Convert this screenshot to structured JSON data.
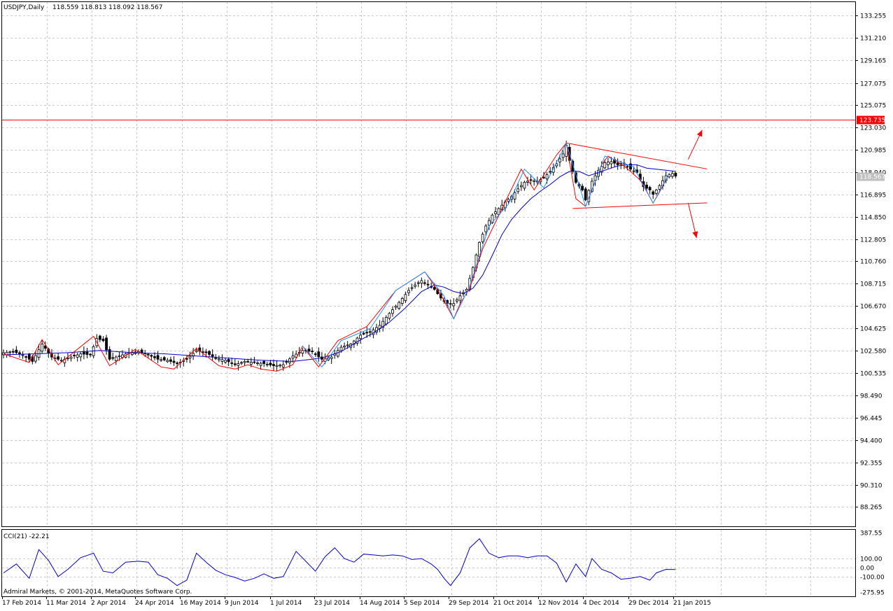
{
  "chart_data": [
    {
      "type": "candlestick",
      "symbol_header": "USDJPY,Daily",
      "ohlc_header": "118.559 118.813 118.092 118.567",
      "y_ticks": [
        "133.255",
        "131.210",
        "129.165",
        "127.075",
        "125.075",
        "123.030",
        "120.985",
        "118.940",
        "116.895",
        "114.850",
        "112.805",
        "110.760",
        "108.715",
        "106.670",
        "104.625",
        "102.580",
        "100.535",
        "98.490",
        "96.445",
        "94.400",
        "92.355",
        "90.310",
        "88.265"
      ],
      "y_tick_values": [
        133.255,
        131.21,
        129.165,
        127.075,
        125.075,
        123.03,
        120.985,
        118.94,
        116.895,
        114.85,
        112.805,
        110.76,
        108.715,
        106.67,
        104.625,
        102.58,
        100.535,
        98.49,
        96.445,
        94.4,
        92.355,
        90.31,
        88.265
      ],
      "ylim": [
        86.5,
        134.5
      ],
      "horizontal_line": {
        "value": 123.735,
        "label": "123.735",
        "color": "#ff0000"
      },
      "current_price": {
        "value": 118.567,
        "label": "118.567"
      },
      "x_ticks": [
        "17 Feb 2014",
        "11 Mar 2014",
        "2 Apr 2014",
        "24 Apr 2014",
        "16 May 2014",
        "9 Jun 2014",
        "1 Jul 2014",
        "23 Jul 2014",
        "14 Aug 2014",
        "5 Sep 2014",
        "29 Sep 2014",
        "21 Oct 2014",
        "12 Nov 2014",
        "4 Dec 2014",
        "29 Dec 2014",
        "21 Jan 2015"
      ],
      "close_path": [
        [
          0,
          102.4
        ],
        [
          3,
          102.5
        ],
        [
          6,
          102.2
        ],
        [
          9,
          101.6
        ],
        [
          12,
          103.2
        ],
        [
          15,
          102.0
        ],
        [
          18,
          101.7
        ],
        [
          21,
          102.0
        ],
        [
          24,
          102.3
        ],
        [
          27,
          102.2
        ],
        [
          29,
          103.7
        ],
        [
          31,
          103.5
        ],
        [
          33,
          101.8
        ],
        [
          36,
          102.1
        ],
        [
          39,
          102.4
        ],
        [
          42,
          102.5
        ],
        [
          45,
          102.2
        ],
        [
          48,
          101.8
        ],
        [
          51,
          101.7
        ],
        [
          54,
          101.4
        ],
        [
          57,
          101.8
        ],
        [
          60,
          102.6
        ],
        [
          63,
          102.4
        ],
        [
          66,
          101.9
        ],
        [
          69,
          101.7
        ],
        [
          72,
          101.3
        ],
        [
          75,
          101.6
        ],
        [
          78,
          101.5
        ],
        [
          81,
          101.4
        ],
        [
          84,
          101.2
        ],
        [
          87,
          101.3
        ],
        [
          90,
          102.1
        ],
        [
          93,
          102.6
        ],
        [
          96,
          102.5
        ],
        [
          99,
          101.8
        ],
        [
          102,
          102.0
        ],
        [
          105,
          102.9
        ],
        [
          108,
          103.2
        ],
        [
          111,
          104.0
        ],
        [
          114,
          104.3
        ],
        [
          117,
          104.9
        ],
        [
          120,
          106.0
        ],
        [
          123,
          107.0
        ],
        [
          126,
          108.1
        ],
        [
          128,
          108.6
        ],
        [
          130,
          109.0
        ],
        [
          132,
          108.6
        ],
        [
          134,
          108.2
        ],
        [
          136,
          107.4
        ],
        [
          138,
          106.9
        ],
        [
          140,
          106.9
        ],
        [
          142,
          107.6
        ],
        [
          144,
          108.2
        ],
        [
          146,
          110.2
        ],
        [
          148,
          112.5
        ],
        [
          150,
          114.0
        ],
        [
          152,
          115.0
        ],
        [
          154,
          115.6
        ],
        [
          156,
          116.2
        ],
        [
          158,
          116.7
        ],
        [
          160,
          117.4
        ],
        [
          162,
          118.0
        ],
        [
          164,
          118.2
        ],
        [
          166,
          118.1
        ],
        [
          168,
          118.4
        ],
        [
          170,
          119.0
        ],
        [
          172,
          119.7
        ],
        [
          174,
          120.6
        ],
        [
          175,
          121.4
        ],
        [
          176,
          120.0
        ],
        [
          178,
          118.0
        ],
        [
          180,
          117.3
        ],
        [
          181,
          116.4
        ],
        [
          183,
          118.1
        ],
        [
          185,
          119.1
        ],
        [
          187,
          119.8
        ],
        [
          189,
          119.9
        ],
        [
          191,
          119.6
        ],
        [
          193,
          119.7
        ],
        [
          195,
          119.2
        ],
        [
          197,
          118.9
        ],
        [
          199,
          117.6
        ],
        [
          201,
          117.3
        ],
        [
          202,
          116.9
        ],
        [
          204,
          117.7
        ],
        [
          206,
          118.6
        ],
        [
          208,
          118.8
        ],
        [
          209,
          118.567
        ]
      ],
      "overlays": [
        {
          "name": "moving average",
          "color": "#0000cc",
          "path": [
            [
              0,
              102.2
            ],
            [
              10,
              102.3
            ],
            [
              20,
              102.4
            ],
            [
              30,
              102.6
            ],
            [
              40,
              102.4
            ],
            [
              50,
              102.3
            ],
            [
              60,
              102.1
            ],
            [
              70,
              101.9
            ],
            [
              80,
              101.7
            ],
            [
              90,
              101.6
            ],
            [
              96,
              101.8
            ],
            [
              100,
              102.0
            ],
            [
              105,
              102.5
            ],
            [
              110,
              103.4
            ],
            [
              115,
              104.2
            ],
            [
              120,
              105.2
            ],
            [
              125,
              106.5
            ],
            [
              130,
              108.0
            ],
            [
              134,
              108.6
            ],
            [
              137,
              108.4
            ],
            [
              140,
              108.0
            ],
            [
              143,
              107.8
            ],
            [
              146,
              108.3
            ],
            [
              149,
              109.5
            ],
            [
              152,
              111.3
            ],
            [
              155,
              113.2
            ],
            [
              158,
              114.6
            ],
            [
              161,
              115.6
            ],
            [
              164,
              116.5
            ],
            [
              167,
              117.2
            ],
            [
              170,
              117.8
            ],
            [
              173,
              118.5
            ],
            [
              176,
              119.0
            ],
            [
              179,
              119.0
            ],
            [
              182,
              118.6
            ],
            [
              185,
              118.9
            ],
            [
              188,
              119.2
            ],
            [
              191,
              119.5
            ],
            [
              194,
              119.6
            ],
            [
              197,
              119.6
            ],
            [
              200,
              119.3
            ],
            [
              203,
              119.2
            ],
            [
              206,
              119.1
            ],
            [
              209,
              119.0
            ]
          ]
        },
        {
          "name": "zigzag",
          "color": "#ff0000",
          "path": [
            [
              0,
              102.3
            ],
            [
              8,
              101.5
            ],
            [
              12,
              103.6
            ],
            [
              17,
              101.3
            ],
            [
              28,
              103.9
            ],
            [
              33,
              101.2
            ],
            [
              41,
              102.7
            ],
            [
              49,
              101.1
            ],
            [
              53,
              100.9
            ],
            [
              60,
              102.8
            ],
            [
              67,
              101.2
            ],
            [
              72,
              100.9
            ],
            [
              76,
              101.3
            ],
            [
              80,
              100.9
            ],
            [
              85,
              100.7
            ],
            [
              90,
              101.3
            ],
            [
              93,
              103.0
            ],
            [
              98,
              101.1
            ],
            [
              104,
              103.5
            ],
            [
              113,
              104.8
            ],
            [
              122,
              108.1
            ],
            [
              131,
              109.8
            ],
            [
              136,
              107.7
            ],
            [
              140,
              105.5
            ],
            [
              142,
              106.9
            ],
            [
              145,
              108.3
            ],
            [
              149,
              111.9
            ],
            [
              156,
              116.2
            ],
            [
              161,
              119.2
            ],
            [
              165,
              117.3
            ],
            [
              172,
              120.5
            ],
            [
              175,
              121.6
            ],
            [
              178,
              116.5
            ],
            [
              181,
              115.8
            ],
            [
              186,
              119.6
            ],
            [
              188,
              120.4
            ],
            [
              193,
              119.5
            ],
            [
              198,
              118.2
            ],
            [
              202,
              116.1
            ],
            [
              204,
              117.1
            ],
            [
              207,
              118.8
            ]
          ]
        },
        {
          "name": "zigzag-2",
          "color": "#1e90ff",
          "path": [
            [
              93,
              103.0
            ],
            [
              99,
              101.1
            ],
            [
              105,
              103.5
            ],
            [
              114,
              104.6
            ],
            [
              122,
              108.1
            ],
            [
              131,
              109.8
            ],
            [
              137,
              107.6
            ],
            [
              140,
              105.5
            ],
            [
              145,
              108.5
            ],
            [
              151,
              114.0
            ],
            [
              157,
              116.0
            ],
            [
              162,
              119.2
            ],
            [
              168,
              117.5
            ],
            [
              175,
              121.6
            ],
            [
              181,
              115.8
            ],
            [
              187,
              120.4
            ],
            [
              196,
              119.4
            ],
            [
              202,
              116.1
            ],
            [
              207,
              118.8
            ]
          ]
        }
      ],
      "trendlines": [
        {
          "name": "triangle upper",
          "color": "#ff0000",
          "from": [
            175,
            121.6
          ],
          "to": [
            209,
            119.2
          ]
        },
        {
          "name": "triangle lower",
          "color": "#ff0000",
          "from": [
            177,
            115.6
          ],
          "to": [
            209,
            116.1
          ]
        }
      ],
      "arrows": [
        {
          "name": "breakout up arrow",
          "color": "#ff0000",
          "direction": "up"
        },
        {
          "name": "breakout down arrow",
          "color": "#ff0000",
          "direction": "down"
        }
      ]
    },
    {
      "type": "line",
      "title": "CCI(21) -22.21",
      "y_ticks": [
        "387.55",
        "100.00",
        "0.00",
        "-100.00",
        "-275.95"
      ],
      "y_tick_values": [
        387.55,
        100,
        0,
        -100,
        -275.95
      ],
      "ylim": [
        -320,
        420
      ],
      "color": "#0000cc",
      "series": [
        {
          "values": [
            [
              0,
              -60
            ],
            [
              4,
              40
            ],
            [
              8,
              -120
            ],
            [
              11,
              200
            ],
            [
              14,
              80
            ],
            [
              17,
              -100
            ],
            [
              20,
              -20
            ],
            [
              24,
              110
            ],
            [
              28,
              160
            ],
            [
              31,
              -40
            ],
            [
              34,
              -60
            ],
            [
              38,
              60
            ],
            [
              42,
              70
            ],
            [
              45,
              60
            ],
            [
              48,
              -80
            ],
            [
              51,
              -120
            ],
            [
              54,
              -200
            ],
            [
              57,
              -140
            ],
            [
              60,
              160
            ],
            [
              63,
              60
            ],
            [
              66,
              -30
            ],
            [
              69,
              -80
            ],
            [
              72,
              -110
            ],
            [
              75,
              -150
            ],
            [
              78,
              -120
            ],
            [
              81,
              -70
            ],
            [
              84,
              -120
            ],
            [
              87,
              -100
            ],
            [
              91,
              180
            ],
            [
              94,
              70
            ],
            [
              97,
              -40
            ],
            [
              100,
              120
            ],
            [
              103,
              220
            ],
            [
              106,
              100
            ],
            [
              109,
              60
            ],
            [
              112,
              150
            ],
            [
              115,
              140
            ],
            [
              118,
              130
            ],
            [
              121,
              140
            ],
            [
              124,
              130
            ],
            [
              127,
              90
            ],
            [
              130,
              100
            ],
            [
              133,
              40
            ],
            [
              135,
              -20
            ],
            [
              137,
              -120
            ],
            [
              139,
              -200
            ],
            [
              142,
              -60
            ],
            [
              145,
              220
            ],
            [
              148,
              320
            ],
            [
              151,
              160
            ],
            [
              154,
              110
            ],
            [
              157,
              130
            ],
            [
              160,
              130
            ],
            [
              163,
              110
            ],
            [
              166,
              130
            ],
            [
              169,
              130
            ],
            [
              172,
              50
            ],
            [
              175,
              -160
            ],
            [
              178,
              40
            ],
            [
              181,
              -100
            ],
            [
              183,
              100
            ],
            [
              186,
              -20
            ],
            [
              189,
              -60
            ],
            [
              192,
              -130
            ],
            [
              195,
              -120
            ],
            [
              198,
              -100
            ],
            [
              201,
              -140
            ],
            [
              203,
              -60
            ],
            [
              206,
              -20
            ],
            [
              209,
              -22
            ]
          ]
        }
      ],
      "copyright": "Admiral Markets, © 2001-2014, MetaQuotes Software Corp."
    }
  ]
}
